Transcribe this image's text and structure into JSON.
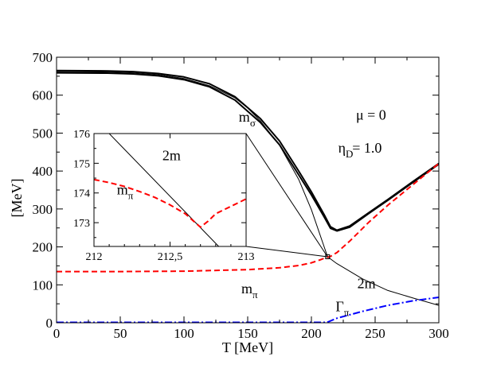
{
  "chart_data": {
    "type": "line",
    "main": {
      "xlabel": "T [MeV]",
      "ylabel": "[MeV]",
      "xlim": [
        0,
        300
      ],
      "ylim": [
        0,
        700
      ],
      "xticks": [
        0,
        50,
        100,
        150,
        200,
        250,
        300
      ],
      "yticks": [
        0,
        100,
        200,
        300,
        400,
        500,
        600,
        700
      ],
      "series": [
        {
          "name": "m_sigma (outer)",
          "color": "#000000",
          "style": "solid",
          "width": 2.0,
          "x": [
            0,
            40,
            60,
            80,
            100,
            120,
            140,
            160,
            175,
            190,
            200,
            210,
            215,
            220,
            230,
            245,
            260,
            280,
            300
          ],
          "y": [
            665,
            664,
            662,
            657,
            648,
            630,
            596,
            538,
            479,
            400,
            345,
            285,
            253,
            244,
            255,
            290,
            325,
            373,
            420
          ]
        },
        {
          "name": "m_sigma (inner)",
          "color": "#000000",
          "style": "solid",
          "width": 2.0,
          "x": [
            0,
            40,
            60,
            80,
            100,
            120,
            140,
            160,
            175,
            190,
            200,
            210,
            215,
            220,
            230,
            245,
            260,
            280,
            300
          ],
          "y": [
            659,
            658,
            656,
            651,
            641,
            622,
            587,
            528,
            469,
            390,
            337,
            279,
            249,
            242,
            252,
            288,
            323,
            371,
            418
          ]
        },
        {
          "name": "2m",
          "color": "#000000",
          "style": "solid",
          "width": 1.0,
          "x": [
            0,
            40,
            60,
            80,
            100,
            120,
            140,
            150,
            160,
            175,
            190,
            200,
            212.7,
            220,
            240,
            260,
            280,
            300
          ],
          "y": [
            662,
            661,
            659,
            654,
            644,
            625,
            593,
            566,
            532,
            468,
            378,
            298,
            174,
            156,
            116,
            85,
            65,
            46
          ]
        },
        {
          "name": "m_pi",
          "color": "#ff0000",
          "style": "dashed",
          "width": 2.0,
          "x": [
            0,
            50,
            100,
            150,
            175,
            190,
            200,
            207,
            210,
            212.7,
            215,
            220,
            230,
            245,
            260,
            280,
            300
          ],
          "y": [
            135,
            135,
            136,
            140,
            145,
            151,
            158,
            166,
            170,
            172.8,
            175,
            185,
            215,
            265,
            310,
            365,
            420
          ]
        },
        {
          "name": "Gamma_pi",
          "color": "#0000ff",
          "style": "dashdot",
          "width": 2.0,
          "x": [
            0,
            212,
            213,
            220,
            240,
            260,
            280,
            300
          ],
          "y": [
            1,
            1,
            2,
            12,
            30,
            46,
            58,
            67
          ]
        }
      ],
      "annotations": [
        {
          "label": "m",
          "sub": "σ",
          "x": 143,
          "y": 530
        },
        {
          "label": "μ = 0",
          "sub": "",
          "x": 235,
          "y": 535
        },
        {
          "label": "η",
          "sub": "D",
          "x": 221,
          "y": 449
        },
        {
          "label": "= 1.0",
          "sub": "",
          "x": 232,
          "y": 449
        },
        {
          "label": "2m",
          "sub": "",
          "x": 236,
          "y": 91
        },
        {
          "label": "m",
          "sub": "π",
          "x": 145,
          "y": 78
        },
        {
          "label": "Γ",
          "sub": "π",
          "x": 219,
          "y": 30
        }
      ]
    },
    "inset": {
      "xlim": [
        212,
        213
      ],
      "ylim": [
        172.2,
        176
      ],
      "xticks": [
        212,
        212.5,
        213
      ],
      "xtick_labels": [
        "212",
        "212,5",
        "213"
      ],
      "yticks": [
        173,
        174,
        175,
        176
      ],
      "series": [
        {
          "name": "2m",
          "color": "#000000",
          "style": "solid",
          "width": 1.0,
          "x": [
            212.1,
            212.82
          ],
          "y": [
            176,
            172.2
          ]
        },
        {
          "name": "m_pi",
          "color": "#ff0000",
          "style": "dashed",
          "width": 2.0,
          "x": [
            212.0,
            212.1,
            212.2,
            212.3,
            212.4,
            212.5,
            212.6,
            212.7,
            212.75,
            212.8,
            212.9,
            213.0
          ],
          "y": [
            174.45,
            174.35,
            174.22,
            174.05,
            173.85,
            173.6,
            173.3,
            172.85,
            173.05,
            173.3,
            173.55,
            173.8
          ]
        }
      ],
      "annotations": [
        {
          "label": "2m",
          "sub": "",
          "x": 212.45,
          "y": 175.1
        },
        {
          "label": "m",
          "sub": "π",
          "x": 212.15,
          "y": 173.95
        }
      ]
    },
    "zoom_marker": {
      "x": 212.7,
      "y": 174
    }
  }
}
